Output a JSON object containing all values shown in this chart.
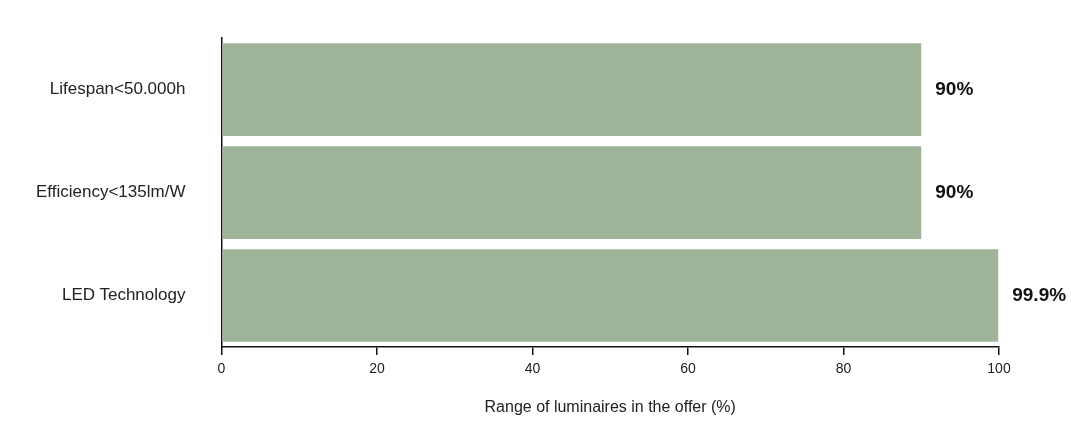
{
  "chart_data": {
    "type": "bar",
    "orientation": "horizontal",
    "xlabel": "Range of luminaires in the offer (%)",
    "categories": [
      "Lifespan<50.000h",
      "Efficiency<135lm/W",
      "LED Technology"
    ],
    "values": [
      90,
      90,
      99.9
    ],
    "color": "#a0b49a",
    "value_labels": [
      "90%",
      "90%",
      "99.9%"
    ],
    "xlim": [
      0,
      100
    ],
    "xticks": [
      0,
      20,
      40,
      60,
      80,
      100
    ]
  }
}
